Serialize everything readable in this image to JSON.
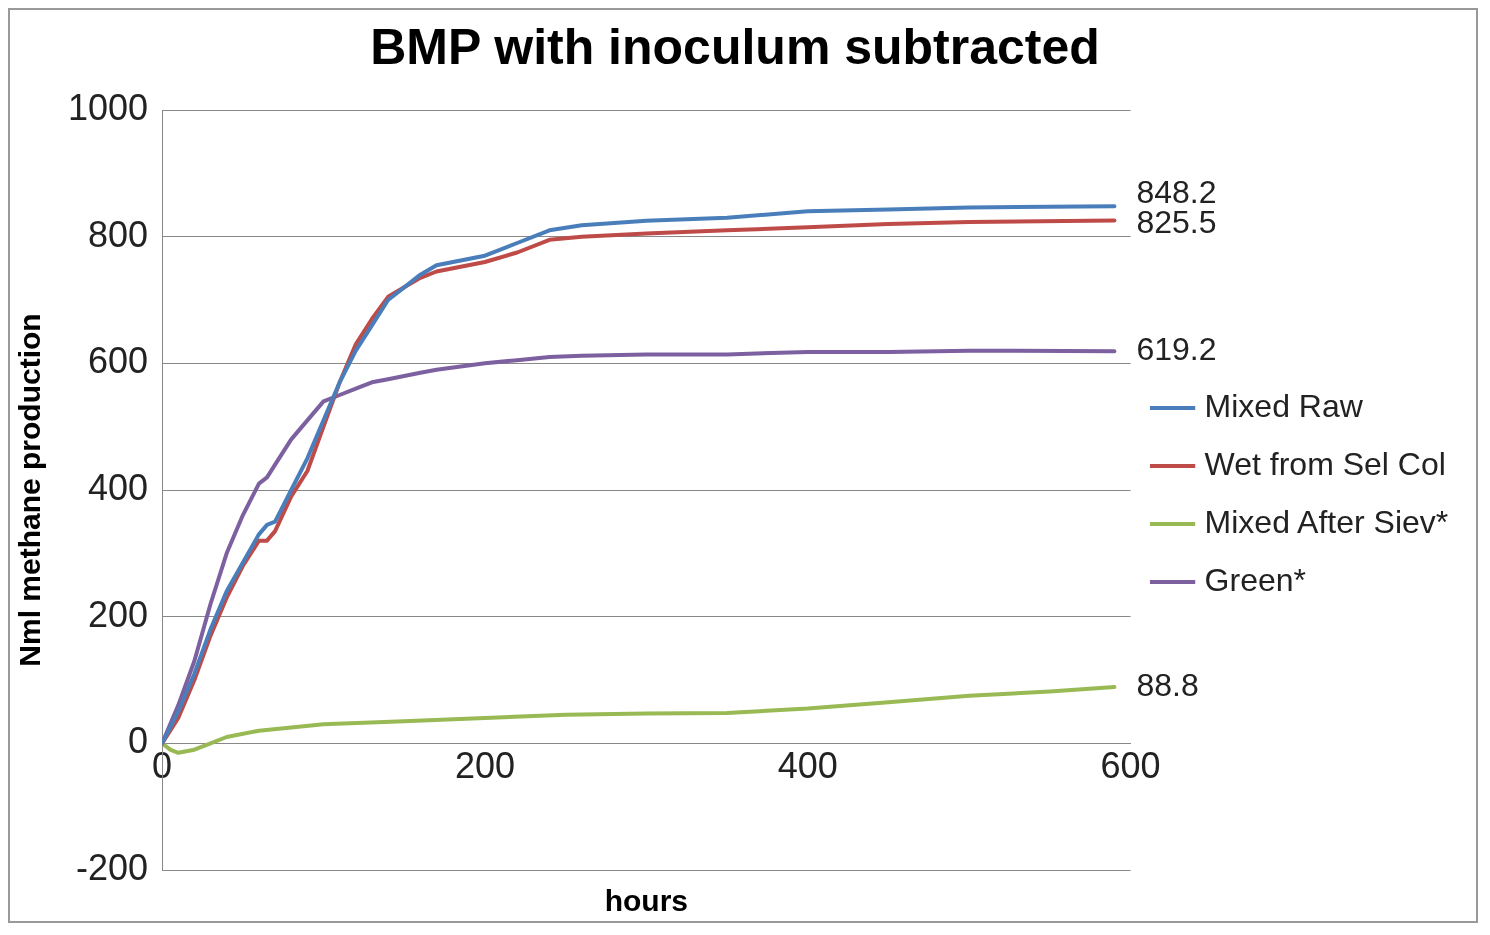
{
  "chart_data": {
    "type": "line",
    "title": "BMP with inoculum subtracted",
    "xlabel": "hours",
    "ylabel": "Nml methane production",
    "x": [
      0,
      10,
      20,
      30,
      40,
      50,
      60,
      65,
      70,
      80,
      90,
      100,
      110,
      120,
      130,
      140,
      150,
      160,
      170,
      200,
      220,
      240,
      260,
      300,
      350,
      400,
      450,
      500,
      590
    ],
    "xlim": [
      0,
      600
    ],
    "xticks": [
      0,
      200,
      400,
      600
    ],
    "ylim": [
      -200,
      1000
    ],
    "yticks": [
      -200,
      0,
      200,
      400,
      600,
      800,
      1000
    ],
    "grid": "y",
    "legend": "right",
    "marker": "none",
    "line_style": "solid",
    "series": [
      {
        "name": "Mixed Raw",
        "color": "#4a7ebb",
        "values": [
          0,
          50,
          110,
          180,
          240,
          285,
          330,
          345,
          350,
          400,
          450,
          510,
          570,
          620,
          660,
          700,
          720,
          740,
          755,
          770,
          790,
          810,
          818,
          825,
          830,
          840,
          843,
          846,
          848.2
        ],
        "value_labels": [
          null,
          null,
          null,
          null,
          null,
          null,
          null,
          null,
          null,
          null,
          null,
          null,
          null,
          null,
          null,
          null,
          null,
          null,
          null,
          null,
          null,
          null,
          null,
          null,
          null,
          null,
          null,
          null,
          "848.2"
        ]
      },
      {
        "name": "Wet from Sel Col",
        "color": "#be4b48",
        "values": [
          0,
          40,
          100,
          170,
          230,
          280,
          320,
          320,
          335,
          390,
          430,
          500,
          570,
          630,
          670,
          705,
          720,
          735,
          745,
          760,
          775,
          795,
          800,
          805,
          810,
          815,
          820,
          823,
          825.5
        ],
        "value_labels": [
          null,
          null,
          null,
          null,
          null,
          null,
          null,
          null,
          null,
          null,
          null,
          null,
          null,
          null,
          null,
          null,
          null,
          null,
          null,
          null,
          null,
          null,
          null,
          null,
          null,
          null,
          null,
          null,
          "825.5"
        ]
      },
      {
        "name": "Mixed After Siev*",
        "color": "#98b954",
        "x": [
          0,
          5,
          10,
          20,
          30,
          40,
          60,
          100,
          150,
          200,
          250,
          300,
          350,
          400,
          450,
          500,
          550,
          590
        ],
        "values": [
          0,
          -10,
          -15,
          -10,
          0,
          10,
          20,
          30,
          35,
          40,
          45,
          47,
          48,
          55,
          65,
          75,
          82,
          88.8
        ],
        "value_labels": [
          null,
          null,
          null,
          null,
          null,
          null,
          null,
          null,
          null,
          null,
          null,
          null,
          null,
          null,
          null,
          null,
          null,
          "88.8"
        ]
      },
      {
        "name": "Green*",
        "color": "#7d60a0",
        "values": [
          0,
          60,
          130,
          220,
          300,
          360,
          410,
          420,
          440,
          480,
          510,
          540,
          550,
          560,
          570,
          575,
          580,
          585,
          590,
          600,
          605,
          610,
          612,
          614,
          614,
          618,
          618,
          620,
          619.2
        ],
        "value_labels": [
          null,
          null,
          null,
          null,
          null,
          null,
          null,
          null,
          null,
          null,
          null,
          null,
          null,
          null,
          null,
          null,
          null,
          null,
          null,
          null,
          null,
          null,
          null,
          null,
          null,
          null,
          null,
          null,
          "619.2"
        ]
      }
    ]
  }
}
